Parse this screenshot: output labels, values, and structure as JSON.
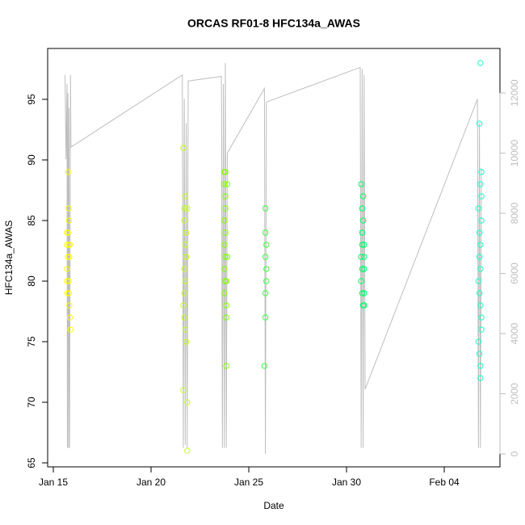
{
  "chart_data": {
    "type": "scatter",
    "title": "ORCAS RF01-8 HFC134a_AWAS",
    "x_label": "Date",
    "y_label": "HFC134a_AWAS",
    "xlim": [
      14.71,
      37.85
    ],
    "ylim": [
      64.67,
      99.2
    ],
    "y2lim": [
      -430,
      13480
    ],
    "xticks": [
      {
        "value": 15,
        "label": "Jan 15"
      },
      {
        "value": 20,
        "label": "Jan 20"
      },
      {
        "value": 25,
        "label": "Jan 25"
      },
      {
        "value": 30,
        "label": "Jan 30"
      },
      {
        "value": 35,
        "label": "Feb 04"
      }
    ],
    "yticks": [
      65,
      70,
      75,
      80,
      85,
      90,
      95
    ],
    "y2ticks": [
      0,
      2000,
      4000,
      6000,
      8000,
      10000,
      12000
    ],
    "y2color": "#bebebe",
    "series": [
      {
        "type": "line",
        "axis": "y2",
        "color": "#bebebe",
        "x": [
          15.6,
          15.65,
          15.7,
          15.72,
          15.75,
          15.78,
          15.8,
          15.83,
          15.88,
          15.9,
          21.6,
          21.65,
          21.7,
          21.75,
          21.8,
          21.85,
          21.9,
          23.6,
          23.65,
          23.7,
          23.75,
          23.8,
          23.85,
          23.9,
          25.8,
          25.85,
          25.9,
          30.7,
          30.75,
          30.8,
          30.85,
          30.9,
          30.95,
          36.7,
          36.75,
          36.8,
          36.85,
          36.9
        ],
        "values": [
          12600,
          9800,
          12300,
          200,
          12000,
          200,
          11500,
          200,
          12600,
          10200,
          12600,
          200,
          11800,
          300,
          11000,
          200,
          12400,
          12550,
          200,
          12300,
          200,
          13000,
          200,
          10000,
          12150,
          0,
          11700,
          12850,
          200,
          12800,
          200,
          12600,
          2150,
          11800,
          200,
          11000,
          200,
          9500
        ]
      },
      {
        "color": "#ffff00",
        "x": [
          15.7,
          15.75,
          15.7,
          15.8,
          15.75,
          15.7,
          15.7,
          15.78,
          15.72,
          15.8,
          15.78,
          15.75,
          15.8,
          15.85,
          15.88,
          15.82,
          15.82,
          15.85
        ],
        "values": [
          84,
          84,
          83,
          83,
          82,
          81,
          80,
          80,
          79,
          79,
          86,
          89,
          85,
          77,
          76,
          78,
          82,
          83
        ]
      },
      {
        "color": "#c6ff1f",
        "x": [
          21.65,
          21.7,
          21.75,
          21.7,
          21.75,
          21.7,
          21.75,
          21.7,
          21.65,
          21.7,
          21.8,
          21.65,
          21.85,
          21.85,
          21.8,
          21.8,
          21.75,
          21.85
        ],
        "values": [
          91,
          86,
          87,
          85,
          83,
          81,
          80,
          79,
          78,
          77,
          75,
          71,
          70,
          66,
          84,
          82,
          76,
          86
        ]
      },
      {
        "color": "#80ff00",
        "x": [
          23.75,
          23.75,
          23.8,
          23.75,
          23.8,
          23.75,
          23.8,
          23.75,
          23.8,
          23.75,
          23.85,
          23.85,
          23.85,
          23.8,
          23.8,
          23.9,
          23.9,
          23.85
        ],
        "values": [
          89,
          88,
          86,
          85,
          84,
          83,
          82,
          81,
          80,
          79,
          78,
          77,
          73,
          87,
          89,
          88,
          82,
          80
        ]
      },
      {
        "color": "#3dff3d",
        "x": [
          25.85,
          25.85,
          25.9,
          25.85,
          25.9,
          25.9,
          25.85,
          25.85,
          25.8
        ],
        "values": [
          86,
          84,
          83,
          82,
          81,
          80,
          79,
          77,
          73
        ]
      },
      {
        "color": "#00ff66",
        "x": [
          30.75,
          30.85,
          30.8,
          30.85,
          30.8,
          30.8,
          30.75,
          30.8,
          30.75,
          30.8,
          30.9,
          30.9,
          30.9,
          30.9,
          30.9,
          30.85
        ],
        "values": [
          88,
          87,
          86,
          85,
          84,
          83,
          82,
          81,
          80,
          79,
          78,
          83,
          82,
          81,
          79,
          78
        ]
      },
      {
        "color": "#1affc6",
        "x": [
          36.85,
          36.8,
          36.9,
          36.85,
          36.9,
          36.75,
          36.9,
          36.8,
          36.85,
          36.8,
          36.85,
          36.75,
          36.8,
          36.85,
          36.9,
          36.9,
          36.75,
          36.8,
          36.85,
          36.85
        ],
        "values": [
          98,
          93,
          89,
          88,
          87,
          86,
          85,
          84,
          83,
          82,
          81,
          80,
          79,
          78,
          77,
          76,
          75,
          74,
          73,
          72
        ]
      }
    ]
  }
}
